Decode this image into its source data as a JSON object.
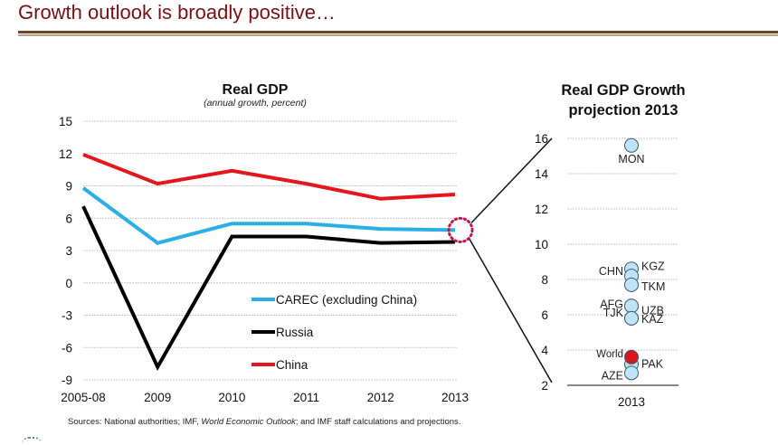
{
  "slide": {
    "title": "Growth outlook is broadly positive…",
    "source_prefix": "Sources: National authorities; IMF, ",
    "source_italic": "World Economic Outlook",
    "source_suffix": "; and IMF staff calculations and projections."
  },
  "colors": {
    "title": "#7b0f10",
    "carec": "#29aee6",
    "russia": "#000000",
    "china": "#e4161b",
    "bubble": "#bfe4f7",
    "bubble_world": "#d9141a",
    "highlight": "#c0184a"
  },
  "chart_data": [
    {
      "type": "line",
      "title": "Real GDP",
      "subtitle": "(annual growth,  percent)",
      "categories": [
        "2005-08",
        "2009",
        "2010",
        "2011",
        "2012",
        "2013"
      ],
      "ylim": [
        -9,
        15
      ],
      "yticks": [
        15,
        12,
        9,
        6,
        3,
        0,
        -3,
        -6,
        -9
      ],
      "grid": true,
      "legend_position": "lower-right",
      "series": [
        {
          "name": "CAREC (excluding China)",
          "color_key": "carec",
          "values": [
            8.8,
            3.7,
            5.5,
            5.5,
            5.0,
            4.9
          ]
        },
        {
          "name": "Russia",
          "color_key": "russia",
          "values": [
            7.1,
            -7.8,
            4.3,
            4.3,
            3.7,
            3.8
          ]
        },
        {
          "name": "China",
          "color_key": "china",
          "values": [
            11.9,
            9.2,
            10.4,
            9.2,
            7.8,
            8.2
          ]
        }
      ],
      "annotation": "dotted circle highlighting 2013 CAREC value"
    },
    {
      "type": "scatter",
      "title_line1": "Real GDP Growth",
      "title_line2": "projection 2013",
      "x_category": "2013",
      "ylim": [
        2,
        16
      ],
      "yticks": [
        16,
        14,
        12,
        10,
        8,
        6,
        4,
        2
      ],
      "grid": true,
      "points": [
        {
          "label": "MON",
          "value": 15.6,
          "label_side": "below"
        },
        {
          "label": "KGZ",
          "value": 8.6,
          "label_side": "right"
        },
        {
          "label": "CHN",
          "value": 8.2,
          "label_side": "left"
        },
        {
          "label": "TKM",
          "value": 7.7,
          "label_side": "right"
        },
        {
          "label": "AFG",
          "value": 6.5,
          "label_side": "left"
        },
        {
          "label": "UZB",
          "value": 6.5,
          "label_side": "right"
        },
        {
          "label": "TJK",
          "value": 5.8,
          "label_side": "left"
        },
        {
          "label": "KAZ",
          "value": 5.8,
          "label_side": "right"
        },
        {
          "label": "World",
          "value": 3.6,
          "label_side": "left",
          "highlight": true
        },
        {
          "label": "PAK",
          "value": 3.2,
          "label_side": "right"
        },
        {
          "label": "AZE",
          "value": 2.7,
          "label_side": "left"
        }
      ]
    }
  ]
}
